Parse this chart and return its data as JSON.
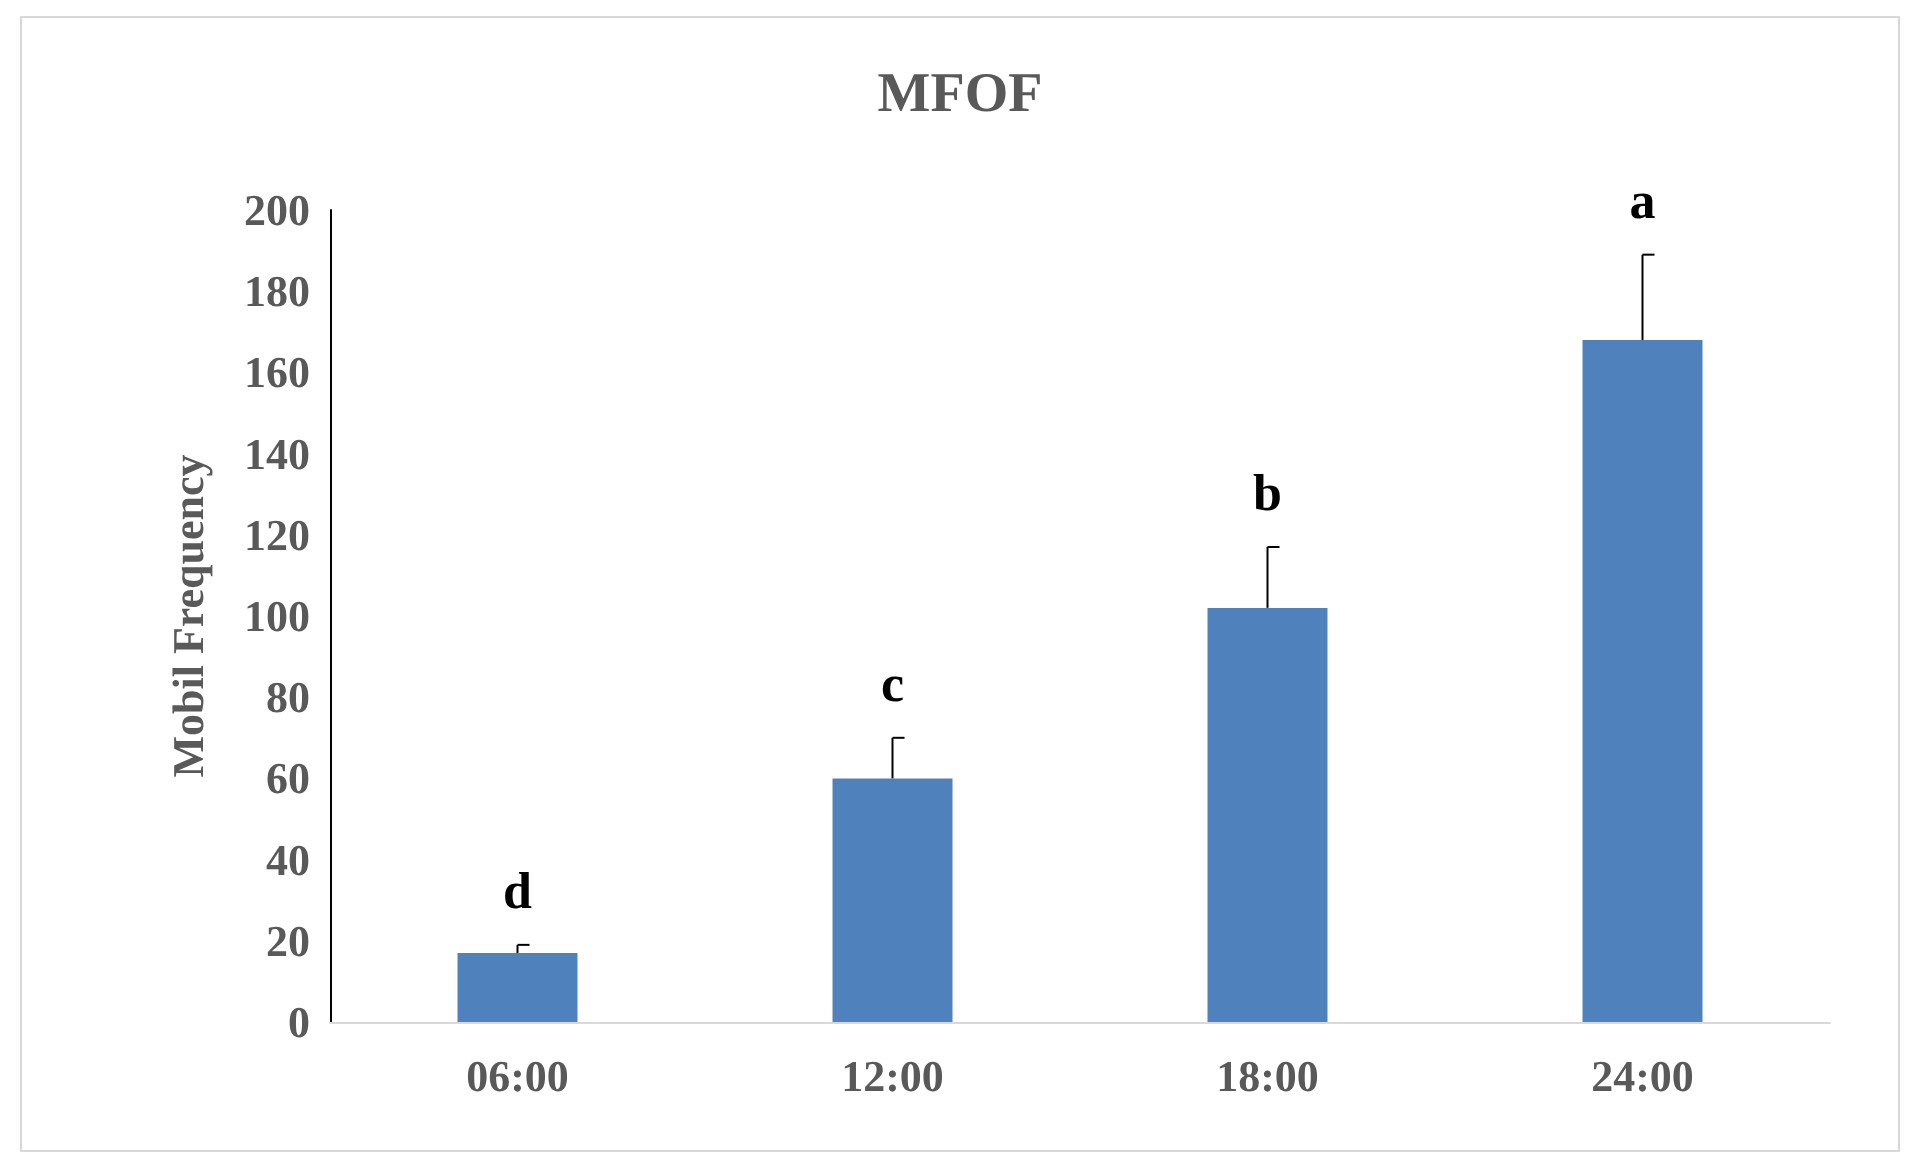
{
  "chart_data": {
    "type": "bar",
    "title": "MFOF",
    "ylabel": "Mobil Frequency",
    "categories": [
      "06:00",
      "12:00",
      "18:00",
      "24:00"
    ],
    "values": [
      17,
      60,
      102,
      168
    ],
    "errors": [
      2,
      10,
      15,
      21
    ],
    "color": "#4f81bd",
    "ylim": [
      0,
      200
    ],
    "yticks": [
      0,
      20,
      40,
      60,
      80,
      100,
      120,
      140,
      160,
      180,
      200
    ],
    "grid": false,
    "legend": false,
    "annotations": [
      {
        "text": "d",
        "x": "06:00",
        "y": 19
      },
      {
        "text": "c",
        "x": "12:00",
        "y": 70
      },
      {
        "text": "b",
        "x": "18:00",
        "y": 117
      },
      {
        "text": "a",
        "x": "24:00",
        "y": 189
      }
    ]
  }
}
